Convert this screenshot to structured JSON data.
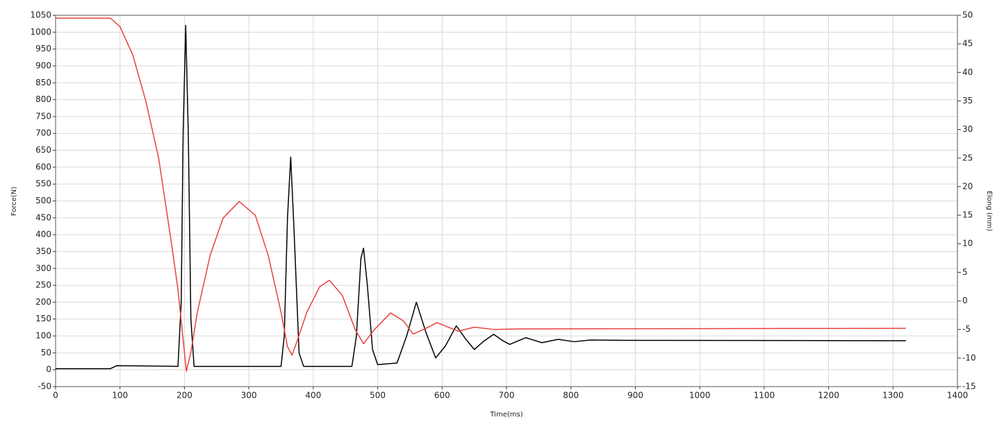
{
  "chart_data": {
    "type": "line",
    "x_label": "Time(ms)",
    "y_label": "Force(N)",
    "y2_label": "Elong (mm)",
    "xlim": [
      0,
      1400
    ],
    "xticks": [
      0,
      100,
      200,
      300,
      400,
      500,
      600,
      700,
      800,
      900,
      1000,
      1100,
      1200,
      1300,
      1400
    ],
    "ylim": [
      -50,
      1050
    ],
    "yticks": [
      -50,
      0,
      50,
      100,
      150,
      200,
      250,
      300,
      350,
      400,
      450,
      500,
      550,
      600,
      650,
      700,
      750,
      800,
      850,
      900,
      950,
      1000,
      1050
    ],
    "y2lim": [
      -15,
      50
    ],
    "y2ticks": [
      -15,
      -10,
      -5,
      0,
      5,
      10,
      15,
      20,
      25,
      30,
      35,
      40,
      45,
      50
    ],
    "grid": true,
    "series": [
      {
        "color": "#000000",
        "x": [
          0,
          85,
          95,
          190,
          195,
          198,
          202,
          206,
          210,
          215,
          350,
          355,
          360,
          365,
          370,
          378,
          385,
          460,
          467,
          474,
          478,
          484,
          492,
          500,
          530,
          545,
          560,
          575,
          590,
          605,
          622,
          637,
          650,
          665,
          680,
          695,
          705,
          730,
          755,
          780,
          805,
          830,
          880,
          1320
        ],
        "values": [
          3,
          3,
          12,
          10,
          200,
          700,
          1020,
          700,
          150,
          10,
          10,
          100,
          450,
          630,
          420,
          50,
          10,
          10,
          100,
          330,
          360,
          250,
          60,
          15,
          20,
          100,
          200,
          110,
          35,
          70,
          130,
          90,
          60,
          85,
          105,
          85,
          75,
          95,
          80,
          90,
          83,
          88,
          87,
          86
        ]
      },
      {
        "color": "#e8403a",
        "axis": "y2",
        "x": [
          0,
          85,
          100,
          120,
          140,
          160,
          180,
          190,
          200,
          203,
          210,
          220,
          240,
          260,
          285,
          310,
          330,
          350,
          360,
          367,
          375,
          390,
          410,
          425,
          445,
          465,
          478,
          495,
          520,
          540,
          555,
          575,
          592,
          610,
          625,
          650,
          680,
          720,
          1320
        ],
        "values": [
          49.5,
          49.5,
          48,
          43,
          35,
          25,
          10,
          2,
          -9,
          -12.3,
          -9,
          -2,
          8,
          14.5,
          17.4,
          15,
          8,
          -2,
          -8,
          -9.5,
          -7,
          -2,
          2.5,
          3.6,
          1,
          -5,
          -7.5,
          -5,
          -2.1,
          -3.5,
          -5.8,
          -4.8,
          -3.8,
          -4.6,
          -5.3,
          -4.6,
          -5,
          -4.9,
          -4.8
        ]
      }
    ]
  }
}
